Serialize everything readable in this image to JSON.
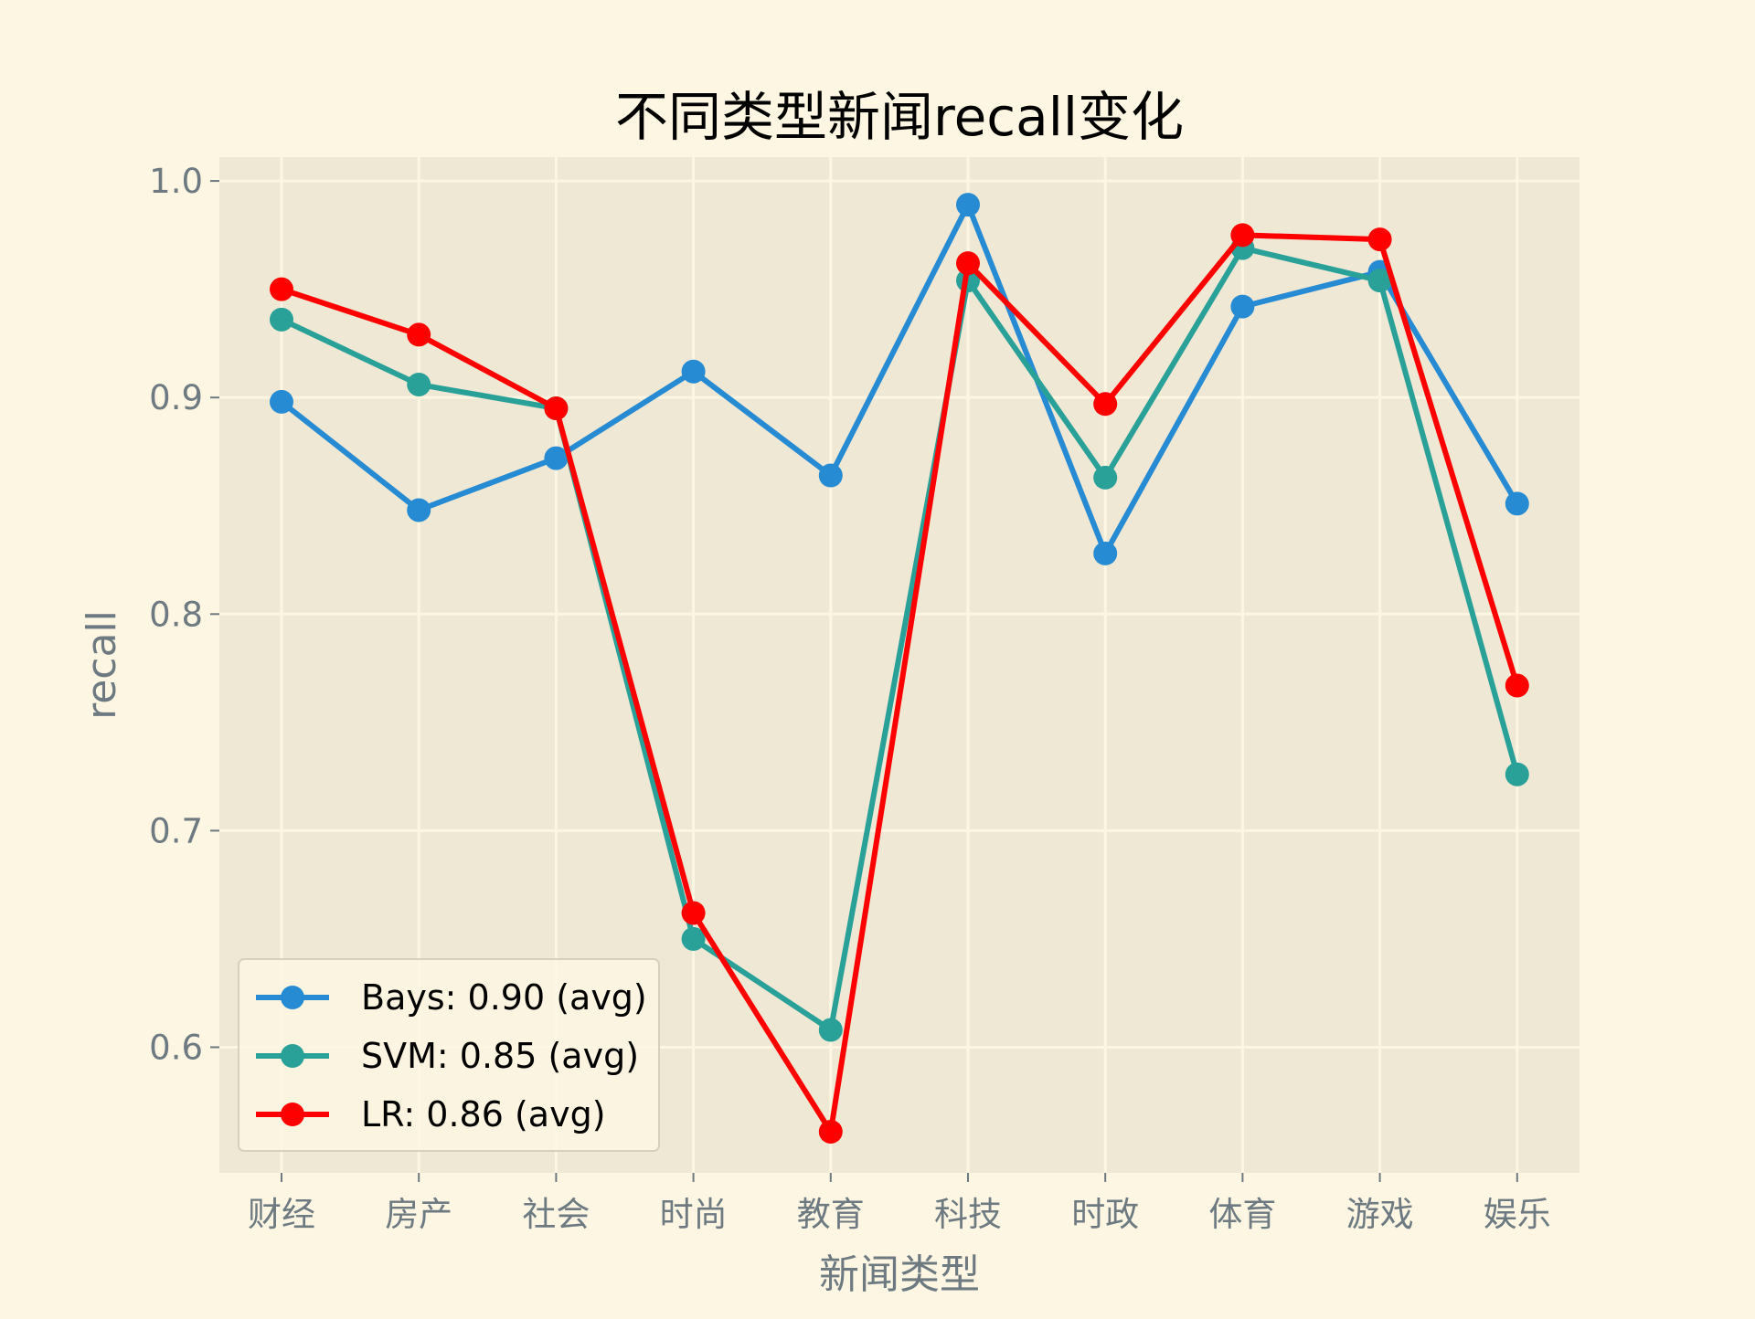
{
  "chart_data": {
    "type": "line",
    "title": "不同类型新闻recall变化",
    "xlabel": "新闻类型",
    "ylabel": "recall",
    "categories": [
      "财经",
      "房产",
      "社会",
      "时尚",
      "教育",
      "科技",
      "时政",
      "体育",
      "游戏",
      "娱乐"
    ],
    "ylim": [
      0.542,
      1.011
    ],
    "yticks": [
      0.6,
      0.7,
      0.8,
      0.9,
      1.0
    ],
    "ytick_labels": [
      "0.6",
      "0.7",
      "0.8",
      "0.9",
      "1.0"
    ],
    "grid": true,
    "legend_position": "lower-left",
    "series": [
      {
        "name": "Bays: 0.90 (avg)",
        "color": "#268bd2",
        "values": [
          0.898,
          0.848,
          0.872,
          0.912,
          0.864,
          0.989,
          0.828,
          0.942,
          0.958,
          0.851
        ]
      },
      {
        "name": "SVM: 0.85 (avg)",
        "color": "#2aa198",
        "values": [
          0.936,
          0.906,
          0.895,
          0.65,
          0.608,
          0.954,
          0.863,
          0.969,
          0.954,
          0.726
        ]
      },
      {
        "name": "LR: 0.86 (avg)",
        "color": "#ff0000",
        "values": [
          0.95,
          0.929,
          0.895,
          0.662,
          0.561,
          0.962,
          0.897,
          0.975,
          0.973,
          0.767
        ]
      }
    ]
  }
}
